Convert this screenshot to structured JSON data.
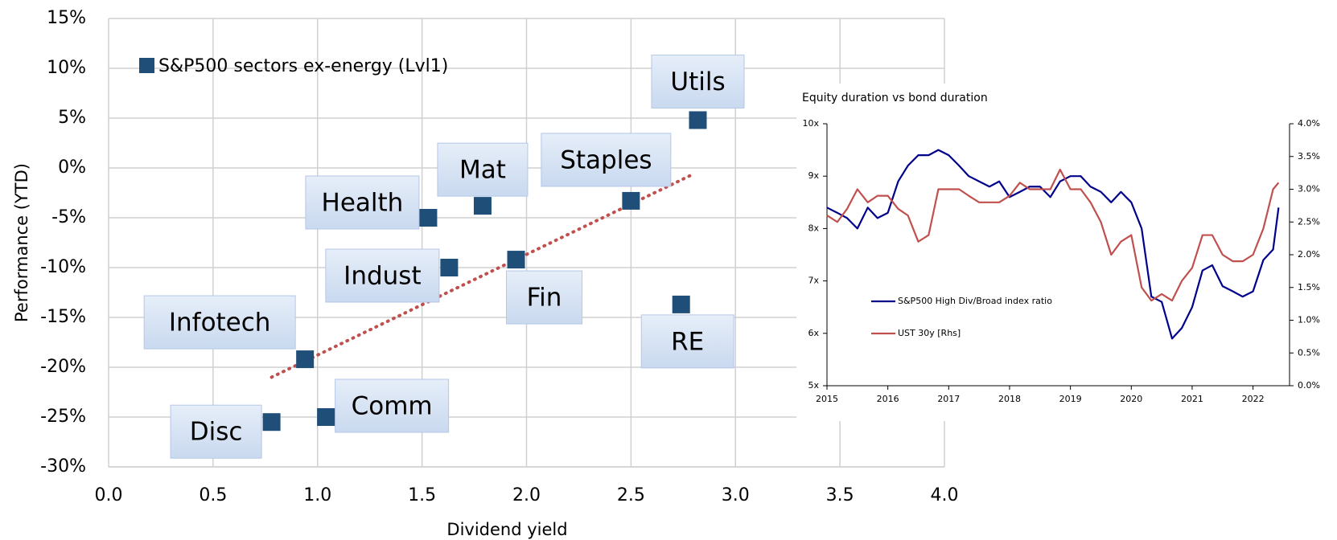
{
  "chart_data": [
    {
      "type": "scatter",
      "x_label": "Dividend yield",
      "y_label": "Performance (YTD)",
      "xlim": [
        0,
        4
      ],
      "ylim": [
        -30,
        15
      ],
      "xticks": [
        {
          "value": 0,
          "label": "0.0"
        },
        0.5,
        {
          "value": 1,
          "label": "1.0"
        },
        1.5,
        {
          "value": 2,
          "label": "2.0"
        },
        2.5,
        {
          "value": 3,
          "label": "3.0"
        },
        3.5,
        {
          "value": 4,
          "label": "4.0"
        }
      ],
      "yticks": [
        {
          "value": -30,
          "label": "-30%"
        },
        {
          "value": -25,
          "label": "-25%"
        },
        {
          "value": -20,
          "label": "-20%"
        },
        {
          "value": -15,
          "label": "-15%"
        },
        {
          "value": -10,
          "label": "-10%"
        },
        {
          "value": -5,
          "label": "-5%"
        },
        {
          "value": 0,
          "label": "0%"
        },
        {
          "value": 5,
          "label": "5%"
        },
        {
          "value": 10,
          "label": "10%"
        },
        {
          "value": 15,
          "label": "15%"
        }
      ],
      "grid": true,
      "legend": "top-left",
      "series": [
        {
          "name": "S&P500 sectors ex-energy (Lvl1)",
          "color": "#1f4e79",
          "x": [
            2.82,
            2.5,
            1.79,
            1.53,
            1.63,
            1.95,
            2.74,
            0.94,
            1.04,
            0.78
          ],
          "values": [
            4.8,
            -3.3,
            -3.8,
            -5,
            -10,
            -9.2,
            -13.7,
            -19.2,
            -25,
            -25.5
          ],
          "labels": [
            "Utils",
            "Staples",
            "Mat",
            "Health",
            "Indust",
            "Fin",
            "RE",
            "Infotech",
            "Comm",
            "Disc"
          ]
        }
      ],
      "trendline": {
        "color": "#c0504d",
        "x": [
          0.78,
          2.8
        ],
        "values": [
          -21,
          -0.6
        ]
      }
    },
    {
      "type": "line",
      "title": "Equity duration vs bond duration",
      "xlim": [
        2015,
        2022.6
      ],
      "xticks": [
        2015,
        2016,
        2017,
        2018,
        2019,
        2020,
        2021,
        2022
      ],
      "ylim": [
        5,
        10
      ],
      "yticks": [
        {
          "value": 5,
          "label": "5x"
        },
        {
          "value": 6,
          "label": "6x"
        },
        {
          "value": 7,
          "label": "7x"
        },
        {
          "value": 8,
          "label": "8x"
        },
        {
          "value": 9,
          "label": "9x"
        },
        {
          "value": 10,
          "label": "10x"
        }
      ],
      "y2lim": [
        0,
        4
      ],
      "y2ticks": [
        {
          "value": 0,
          "label": "0.0%"
        },
        {
          "value": 0.5,
          "label": "0.5%"
        },
        {
          "value": 1,
          "label": "1.0%"
        },
        {
          "value": 1.5,
          "label": "1.5%"
        },
        {
          "value": 2,
          "label": "2.0%"
        },
        {
          "value": 2.5,
          "label": "2.5%"
        },
        {
          "value": 3,
          "label": "3.0%"
        },
        {
          "value": 3.5,
          "label": "3.5%"
        },
        {
          "value": 4,
          "label": "4.0%"
        }
      ],
      "legend": "center-left",
      "x": [
        2015.0,
        2015.17,
        2015.33,
        2015.5,
        2015.67,
        2015.83,
        2016.0,
        2016.17,
        2016.33,
        2016.5,
        2016.67,
        2016.83,
        2017.0,
        2017.17,
        2017.33,
        2017.5,
        2017.67,
        2017.83,
        2018.0,
        2018.17,
        2018.33,
        2018.5,
        2018.67,
        2018.83,
        2019.0,
        2019.17,
        2019.33,
        2019.5,
        2019.67,
        2019.83,
        2020.0,
        2020.17,
        2020.33,
        2020.5,
        2020.67,
        2020.83,
        2021.0,
        2021.17,
        2021.33,
        2021.5,
        2021.67,
        2021.83,
        2022.0,
        2022.17,
        2022.33,
        2022.42
      ],
      "series": [
        {
          "name": "S&P500 High Div/Broad index ratio",
          "color": "#00008b",
          "values": [
            8.4,
            8.3,
            8.2,
            8.0,
            8.4,
            8.2,
            8.3,
            8.9,
            9.2,
            9.4,
            9.4,
            9.5,
            9.4,
            9.2,
            9.0,
            8.9,
            8.8,
            8.9,
            8.6,
            8.7,
            8.8,
            8.8,
            8.6,
            8.9,
            9.0,
            9.0,
            8.8,
            8.7,
            8.5,
            8.7,
            8.5,
            8.0,
            6.7,
            6.6,
            5.9,
            6.1,
            6.5,
            7.2,
            7.3,
            6.9,
            6.8,
            6.7,
            6.8,
            7.4,
            7.6,
            8.4
          ]
        },
        {
          "name": "UST 30y [Rhs]",
          "color": "#c0504d",
          "axis": "y2",
          "values": [
            2.6,
            2.5,
            2.7,
            3.0,
            2.8,
            2.9,
            2.9,
            2.7,
            2.6,
            2.2,
            2.3,
            3.0,
            3.0,
            3.0,
            2.9,
            2.8,
            2.8,
            2.8,
            2.9,
            3.1,
            3.0,
            3.0,
            3.0,
            3.3,
            3.0,
            3.0,
            2.8,
            2.5,
            2.0,
            2.2,
            2.3,
            1.5,
            1.3,
            1.4,
            1.3,
            1.6,
            1.8,
            2.3,
            2.3,
            2.0,
            1.9,
            1.9,
            2.0,
            2.4,
            3.0,
            3.1
          ]
        }
      ]
    }
  ]
}
